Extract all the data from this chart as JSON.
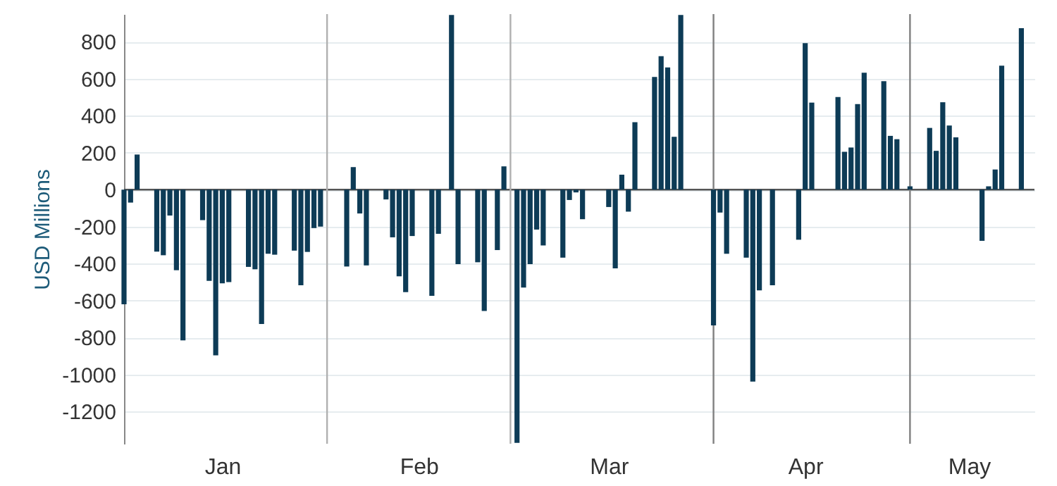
{
  "chart_data": {
    "type": "bar",
    "ylabel": "USD Millions",
    "x": [
      "--01-01",
      "--01-02",
      "--01-03",
      "--01-06",
      "--01-07",
      "--01-08",
      "--01-09",
      "--01-10",
      "--01-13",
      "--01-14",
      "--01-15",
      "--01-16",
      "--01-17",
      "--01-20",
      "--01-21",
      "--01-22",
      "--01-23",
      "--01-24",
      "--01-27",
      "--01-28",
      "--01-29",
      "--01-30",
      "--01-31",
      "--02-04",
      "--02-05",
      "--02-06",
      "--02-07",
      "--02-10",
      "--02-11",
      "--02-12",
      "--02-13",
      "--02-14",
      "--02-17",
      "--02-18",
      "--02-20",
      "--02-21",
      "--02-24",
      "--02-25",
      "--02-27",
      "--02-28",
      "--03-02",
      "--03-03",
      "--03-04",
      "--03-05",
      "--03-06",
      "--03-09",
      "--03-10",
      "--03-11",
      "--03-12",
      "--03-16",
      "--03-17",
      "--03-18",
      "--03-19",
      "--03-20",
      "--03-23",
      "--03-24",
      "--03-25",
      "--03-26",
      "--03-27",
      "--04-01",
      "--04-02",
      "--04-03",
      "--04-06",
      "--04-07",
      "--04-08",
      "--04-10",
      "--04-14",
      "--04-15",
      "--04-16",
      "--04-20",
      "--04-21",
      "--04-22",
      "--04-23",
      "--04-24",
      "--04-27",
      "--04-28",
      "--04-29",
      "--05-01",
      "--05-04",
      "--05-05",
      "--05-06",
      "--05-07",
      "--05-08",
      "--05-12",
      "--05-13",
      "--05-14",
      "--05-15",
      "--05-18"
    ],
    "series": [
      {
        "color": "#0d3b56",
        "values": [
          -620,
          -70,
          190,
          -335,
          -355,
          -140,
          -436,
          -816,
          -165,
          -494,
          -897,
          -507,
          -500,
          -418,
          -431,
          -727,
          -347,
          -352,
          -330,
          -517,
          -337,
          -208,
          -200,
          -416,
          122,
          -129,
          -410,
          -53,
          -258,
          -469,
          -555,
          -251,
          -575,
          -239,
          945,
          -403,
          -393,
          -657,
          -327,
          126,
          -1370,
          -530,
          -403,
          -216,
          -302,
          -368,
          -56,
          -15,
          -160,
          -94,
          -426,
          81,
          -119,
          365,
          610,
          722,
          661,
          286,
          945,
          -735,
          -124,
          -347,
          -368,
          -1039,
          -545,
          -517,
          -271,
          793,
          471,
          501,
          205,
          228,
          463,
          633,
          587,
          291,
          273,
          18,
          334,
          210,
          473,
          347,
          283,
          -277,
          18,
          109,
          671,
          874
        ]
      }
    ],
    "xlim": [
      "--01-01",
      "--05-20"
    ],
    "xticks": [
      {
        "value": "--01-16",
        "label": "Jan"
      },
      {
        "value": "--02-15",
        "label": "Feb"
      },
      {
        "value": "--03-16",
        "label": "Mar"
      },
      {
        "value": "--04-15",
        "label": "Apr"
      },
      {
        "value": "--05-10",
        "label": "May"
      }
    ],
    "ylim": [
      -1375,
      950
    ],
    "yticks": [
      -1200,
      -1000,
      -800,
      -600,
      -400,
      -200,
      0,
      200,
      400,
      600,
      800
    ],
    "ref_lines": [
      {
        "axis": "x",
        "value": "--02-01",
        "color": "#b0b0b0"
      },
      {
        "axis": "x",
        "value": "--03-01",
        "color": "#b0b0b0"
      },
      {
        "axis": "x",
        "value": "--04-01",
        "color": "#808080"
      },
      {
        "axis": "x",
        "value": "--05-01",
        "color": "#808080"
      },
      {
        "axis": "y",
        "value": 0,
        "color": "#555555"
      }
    ],
    "grid": "y"
  }
}
